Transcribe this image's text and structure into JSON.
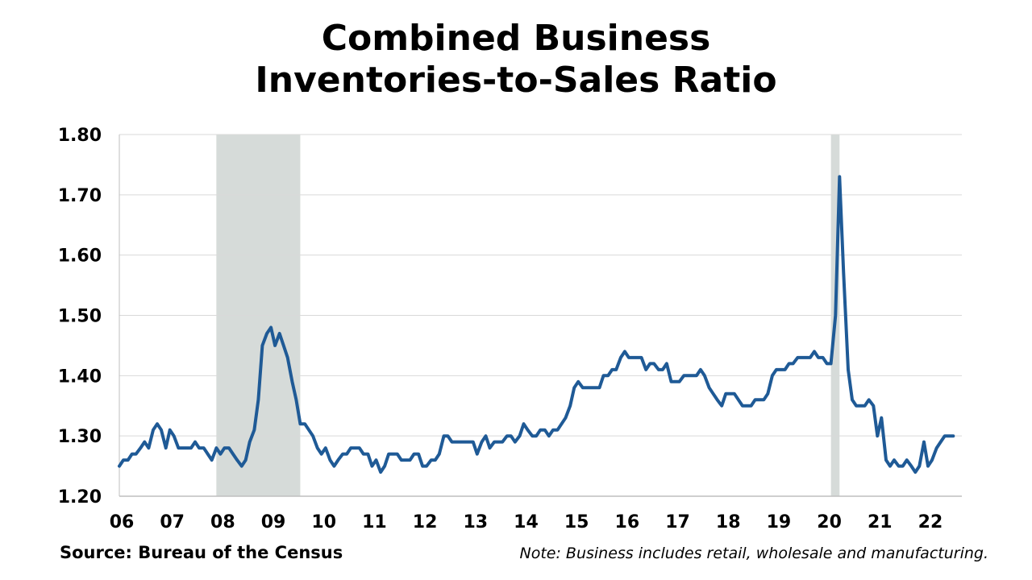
{
  "title_line1": "Combined Business",
  "title_line2": "Inventories-to-Sales Ratio",
  "source": "Source: Bureau of the Census",
  "note": "Note: Business includes retail, wholesale and manufacturing.",
  "colors": {
    "line": "#1f5a96",
    "recession": "#d6dbd9",
    "grid": "#d9d9d9",
    "axis": "#bfbfbf"
  },
  "chart_data": {
    "type": "line",
    "title": "Combined Business Inventories-to-Sales Ratio",
    "xlabel": "",
    "ylabel": "",
    "x_tick_labels": [
      "06",
      "07",
      "08",
      "09",
      "10",
      "11",
      "12",
      "13",
      "14",
      "15",
      "16",
      "17",
      "18",
      "19",
      "20",
      "21",
      "22"
    ],
    "y_ticks": [
      "1.20",
      "1.30",
      "1.40",
      "1.50",
      "1.60",
      "1.70",
      "1.80"
    ],
    "ylim": [
      1.2,
      1.8
    ],
    "xlim": [
      2006.0,
      2022.67
    ],
    "grid": "horizontal",
    "recession_shading": [
      [
        2007.92,
        2009.58
      ],
      [
        2020.08,
        2020.25
      ]
    ],
    "series": [
      {
        "values": [
          [
            2006.0,
            1.25
          ],
          [
            2006.08,
            1.26
          ],
          [
            2006.17,
            1.26
          ],
          [
            2006.25,
            1.27
          ],
          [
            2006.33,
            1.27
          ],
          [
            2006.42,
            1.28
          ],
          [
            2006.5,
            1.29
          ],
          [
            2006.58,
            1.28
          ],
          [
            2006.67,
            1.31
          ],
          [
            2006.75,
            1.32
          ],
          [
            2006.83,
            1.31
          ],
          [
            2006.92,
            1.28
          ],
          [
            2007.0,
            1.31
          ],
          [
            2007.08,
            1.3
          ],
          [
            2007.17,
            1.28
          ],
          [
            2007.25,
            1.28
          ],
          [
            2007.33,
            1.28
          ],
          [
            2007.42,
            1.28
          ],
          [
            2007.5,
            1.29
          ],
          [
            2007.58,
            1.28
          ],
          [
            2007.67,
            1.28
          ],
          [
            2007.75,
            1.27
          ],
          [
            2007.83,
            1.26
          ],
          [
            2007.92,
            1.28
          ],
          [
            2008.0,
            1.27
          ],
          [
            2008.08,
            1.28
          ],
          [
            2008.17,
            1.28
          ],
          [
            2008.25,
            1.27
          ],
          [
            2008.33,
            1.26
          ],
          [
            2008.42,
            1.25
          ],
          [
            2008.5,
            1.26
          ],
          [
            2008.58,
            1.29
          ],
          [
            2008.67,
            1.31
          ],
          [
            2008.75,
            1.36
          ],
          [
            2008.83,
            1.45
          ],
          [
            2008.92,
            1.47
          ],
          [
            2009.0,
            1.48
          ],
          [
            2009.08,
            1.45
          ],
          [
            2009.17,
            1.47
          ],
          [
            2009.25,
            1.45
          ],
          [
            2009.33,
            1.43
          ],
          [
            2009.42,
            1.39
          ],
          [
            2009.5,
            1.36
          ],
          [
            2009.58,
            1.32
          ],
          [
            2009.67,
            1.32
          ],
          [
            2009.75,
            1.31
          ],
          [
            2009.83,
            1.3
          ],
          [
            2009.92,
            1.28
          ],
          [
            2010.0,
            1.27
          ],
          [
            2010.08,
            1.28
          ],
          [
            2010.17,
            1.26
          ],
          [
            2010.25,
            1.25
          ],
          [
            2010.33,
            1.26
          ],
          [
            2010.42,
            1.27
          ],
          [
            2010.5,
            1.27
          ],
          [
            2010.58,
            1.28
          ],
          [
            2010.67,
            1.28
          ],
          [
            2010.75,
            1.28
          ],
          [
            2010.83,
            1.27
          ],
          [
            2010.92,
            1.27
          ],
          [
            2011.0,
            1.25
          ],
          [
            2011.08,
            1.26
          ],
          [
            2011.17,
            1.24
          ],
          [
            2011.25,
            1.25
          ],
          [
            2011.33,
            1.27
          ],
          [
            2011.42,
            1.27
          ],
          [
            2011.5,
            1.27
          ],
          [
            2011.58,
            1.26
          ],
          [
            2011.67,
            1.26
          ],
          [
            2011.75,
            1.26
          ],
          [
            2011.83,
            1.27
          ],
          [
            2011.92,
            1.27
          ],
          [
            2012.0,
            1.25
          ],
          [
            2012.08,
            1.25
          ],
          [
            2012.17,
            1.26
          ],
          [
            2012.25,
            1.26
          ],
          [
            2012.33,
            1.27
          ],
          [
            2012.42,
            1.3
          ],
          [
            2012.5,
            1.3
          ],
          [
            2012.58,
            1.29
          ],
          [
            2012.67,
            1.29
          ],
          [
            2012.75,
            1.29
          ],
          [
            2012.83,
            1.29
          ],
          [
            2012.92,
            1.29
          ],
          [
            2013.0,
            1.29
          ],
          [
            2013.08,
            1.27
          ],
          [
            2013.17,
            1.29
          ],
          [
            2013.25,
            1.3
          ],
          [
            2013.33,
            1.28
          ],
          [
            2013.42,
            1.29
          ],
          [
            2013.5,
            1.29
          ],
          [
            2013.58,
            1.29
          ],
          [
            2013.67,
            1.3
          ],
          [
            2013.75,
            1.3
          ],
          [
            2013.83,
            1.29
          ],
          [
            2013.92,
            1.3
          ],
          [
            2014.0,
            1.32
          ],
          [
            2014.08,
            1.31
          ],
          [
            2014.17,
            1.3
          ],
          [
            2014.25,
            1.3
          ],
          [
            2014.33,
            1.31
          ],
          [
            2014.42,
            1.31
          ],
          [
            2014.5,
            1.3
          ],
          [
            2014.58,
            1.31
          ],
          [
            2014.67,
            1.31
          ],
          [
            2014.75,
            1.32
          ],
          [
            2014.83,
            1.33
          ],
          [
            2014.92,
            1.35
          ],
          [
            2015.0,
            1.38
          ],
          [
            2015.08,
            1.39
          ],
          [
            2015.17,
            1.38
          ],
          [
            2015.25,
            1.38
          ],
          [
            2015.33,
            1.38
          ],
          [
            2015.42,
            1.38
          ],
          [
            2015.5,
            1.38
          ],
          [
            2015.58,
            1.4
          ],
          [
            2015.67,
            1.4
          ],
          [
            2015.75,
            1.41
          ],
          [
            2015.83,
            1.41
          ],
          [
            2015.92,
            1.43
          ],
          [
            2016.0,
            1.44
          ],
          [
            2016.08,
            1.43
          ],
          [
            2016.17,
            1.43
          ],
          [
            2016.25,
            1.43
          ],
          [
            2016.33,
            1.43
          ],
          [
            2016.42,
            1.41
          ],
          [
            2016.5,
            1.42
          ],
          [
            2016.58,
            1.42
          ],
          [
            2016.67,
            1.41
          ],
          [
            2016.75,
            1.41
          ],
          [
            2016.83,
            1.42
          ],
          [
            2016.92,
            1.39
          ],
          [
            2017.0,
            1.39
          ],
          [
            2017.08,
            1.39
          ],
          [
            2017.17,
            1.4
          ],
          [
            2017.25,
            1.4
          ],
          [
            2017.33,
            1.4
          ],
          [
            2017.42,
            1.4
          ],
          [
            2017.5,
            1.41
          ],
          [
            2017.58,
            1.4
          ],
          [
            2017.67,
            1.38
          ],
          [
            2017.75,
            1.37
          ],
          [
            2017.83,
            1.36
          ],
          [
            2017.92,
            1.35
          ],
          [
            2018.0,
            1.37
          ],
          [
            2018.08,
            1.37
          ],
          [
            2018.17,
            1.37
          ],
          [
            2018.25,
            1.36
          ],
          [
            2018.33,
            1.35
          ],
          [
            2018.42,
            1.35
          ],
          [
            2018.5,
            1.35
          ],
          [
            2018.58,
            1.36
          ],
          [
            2018.67,
            1.36
          ],
          [
            2018.75,
            1.36
          ],
          [
            2018.83,
            1.37
          ],
          [
            2018.92,
            1.4
          ],
          [
            2019.0,
            1.41
          ],
          [
            2019.08,
            1.41
          ],
          [
            2019.17,
            1.41
          ],
          [
            2019.25,
            1.42
          ],
          [
            2019.33,
            1.42
          ],
          [
            2019.42,
            1.43
          ],
          [
            2019.5,
            1.43
          ],
          [
            2019.58,
            1.43
          ],
          [
            2019.67,
            1.43
          ],
          [
            2019.75,
            1.44
          ],
          [
            2019.83,
            1.43
          ],
          [
            2019.92,
            1.43
          ],
          [
            2020.0,
            1.42
          ],
          [
            2020.08,
            1.42
          ],
          [
            2020.17,
            1.5
          ],
          [
            2020.25,
            1.73
          ],
          [
            2020.33,
            1.57
          ],
          [
            2020.42,
            1.41
          ],
          [
            2020.5,
            1.36
          ],
          [
            2020.58,
            1.35
          ],
          [
            2020.67,
            1.35
          ],
          [
            2020.75,
            1.35
          ],
          [
            2020.83,
            1.36
          ],
          [
            2020.92,
            1.35
          ],
          [
            2021.0,
            1.3
          ],
          [
            2021.08,
            1.33
          ],
          [
            2021.17,
            1.26
          ],
          [
            2021.25,
            1.25
          ],
          [
            2021.33,
            1.26
          ],
          [
            2021.42,
            1.25
          ],
          [
            2021.5,
            1.25
          ],
          [
            2021.58,
            1.26
          ],
          [
            2021.67,
            1.25
          ],
          [
            2021.75,
            1.24
          ],
          [
            2021.83,
            1.25
          ],
          [
            2021.92,
            1.29
          ],
          [
            2022.0,
            1.25
          ],
          [
            2022.08,
            1.26
          ],
          [
            2022.17,
            1.28
          ],
          [
            2022.25,
            1.29
          ],
          [
            2022.33,
            1.3
          ],
          [
            2022.42,
            1.3
          ],
          [
            2022.5,
            1.3
          ]
        ]
      }
    ]
  }
}
